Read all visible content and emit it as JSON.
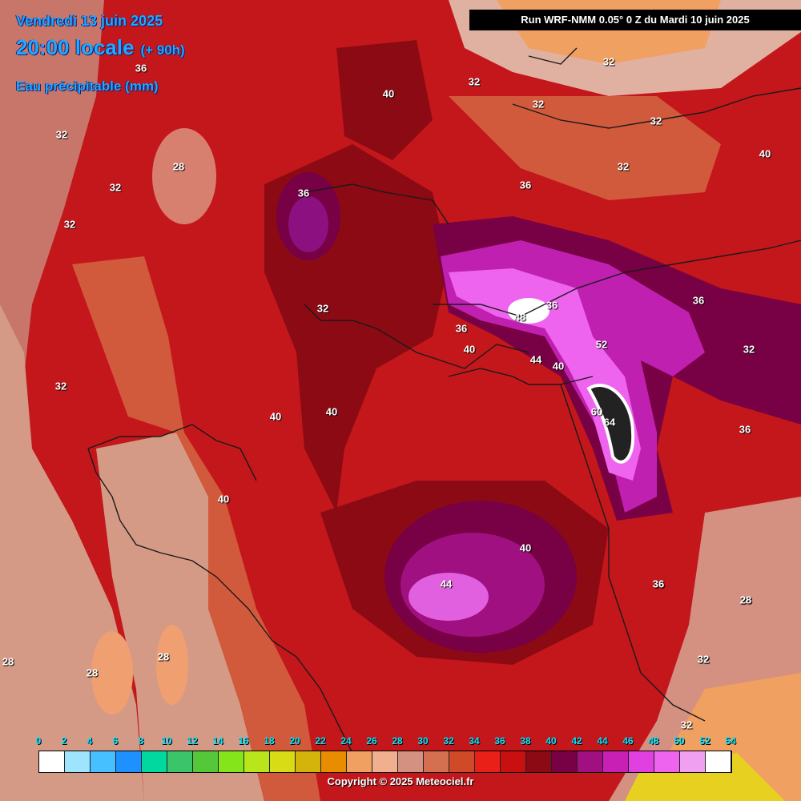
{
  "header": {
    "date": "Vendredi 13 juin 2025",
    "time": "20:00 locale",
    "offset": "(+ 90h)",
    "parameter": "Eau précipitable (mm)"
  },
  "run_banner": "Run WRF-NMM 0.05° 0 Z du Mardi 10 juin 2025",
  "contour_labels": [
    "36",
    "40",
    "32",
    "32",
    "32",
    "28",
    "32",
    "32",
    "32",
    "36",
    "32",
    "32",
    "36",
    "40",
    "32",
    "36",
    "36",
    "36",
    "48",
    "52",
    "40",
    "44",
    "32",
    "32",
    "40",
    "40",
    "40",
    "36",
    "60",
    "64",
    "40",
    "36",
    "32",
    "32",
    "40",
    "44",
    "36",
    "28",
    "28",
    "32",
    "28",
    "28",
    "28"
  ],
  "legend": {
    "ticks": [
      "0",
      "2",
      "4",
      "6",
      "8",
      "10",
      "12",
      "14",
      "16",
      "18",
      "20",
      "22",
      "24",
      "26",
      "28",
      "30",
      "32",
      "34",
      "36",
      "38",
      "40",
      "42",
      "44",
      "46",
      "48",
      "50",
      "52",
      "54"
    ],
    "colors": [
      "#ffffff",
      "#9ee4ff",
      "#46c0ff",
      "#1e90ff",
      "#00d8a0",
      "#3cc46a",
      "#55c83a",
      "#84e61a",
      "#b8e61a",
      "#d8dc14",
      "#d4b40a",
      "#e88c00",
      "#f0a060",
      "#f0b090",
      "#d49080",
      "#d47050",
      "#d04a28",
      "#e82018",
      "#c81010",
      "#8c0a14",
      "#780044",
      "#a01080",
      "#c820b4",
      "#e040e0",
      "#ee64ee",
      "#f0a0f0",
      "#ffffff"
    ]
  },
  "copyright": "Copyright © 2025 Meteociel.fr"
}
